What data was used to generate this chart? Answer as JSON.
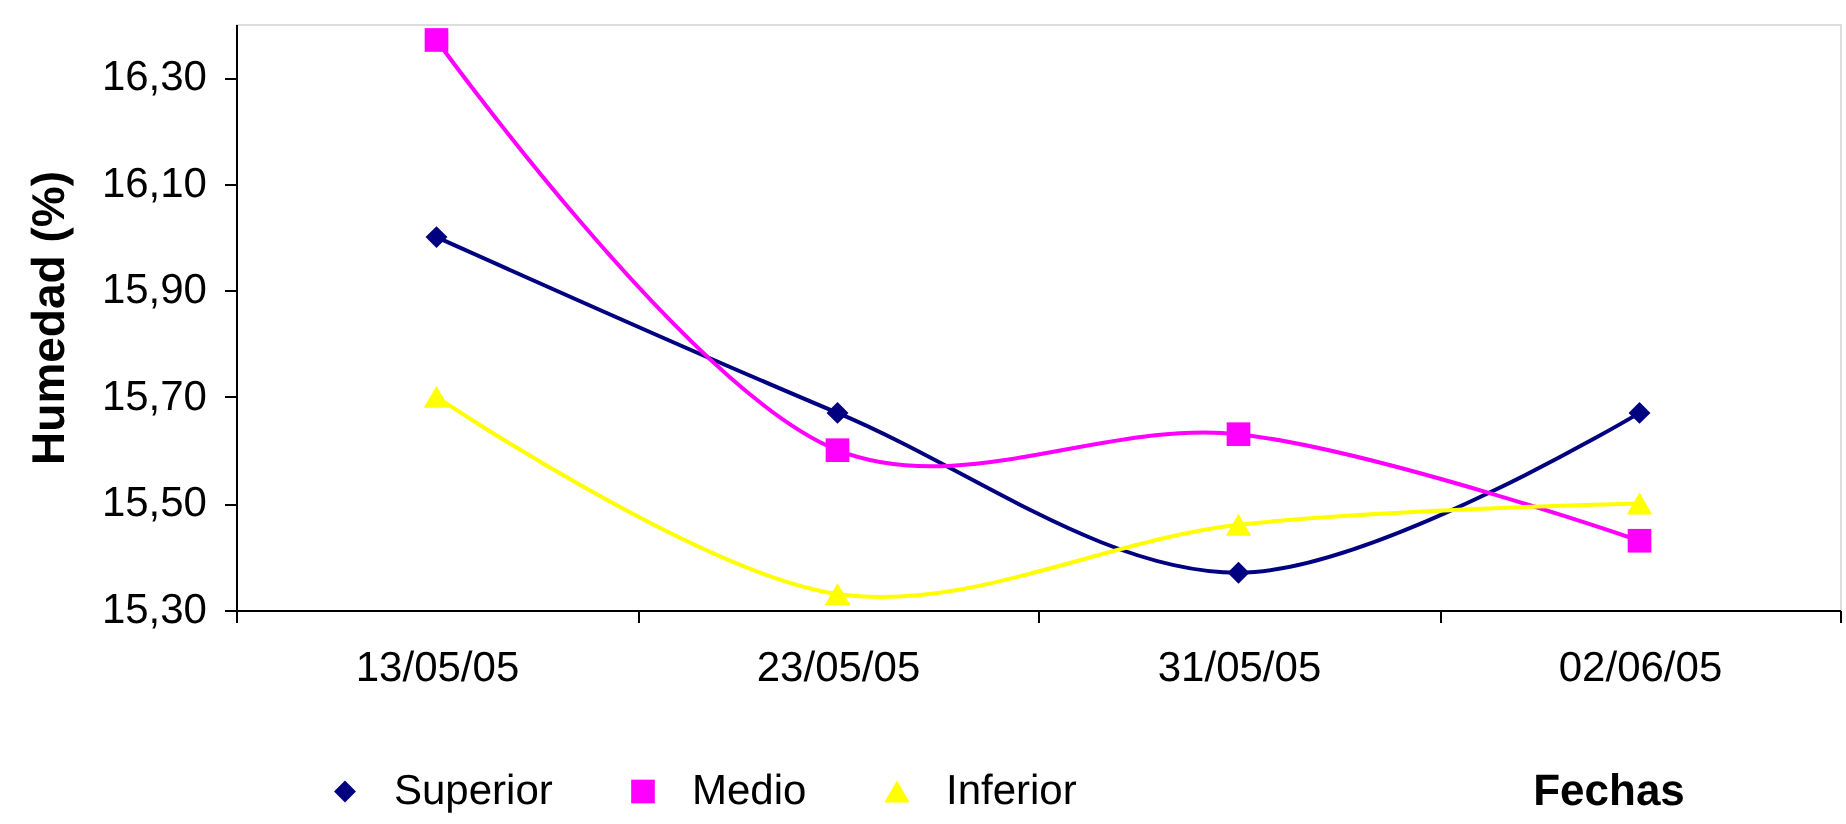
{
  "chart_data": {
    "type": "line",
    "xlabel": "Fechas",
    "ylabel": "Humedad (%)",
    "categories": [
      "13/05/05",
      "23/05/05",
      "31/05/05",
      "02/06/05"
    ],
    "series": [
      {
        "name": "Superior",
        "color": "#000080",
        "marker": "diamond",
        "values": [
          16.0,
          15.67,
          15.37,
          15.67
        ]
      },
      {
        "name": "Medio",
        "color": "#ff00ff",
        "marker": "square",
        "values": [
          16.37,
          15.6,
          15.63,
          15.43
        ]
      },
      {
        "name": "Inferior",
        "color": "#ffff00",
        "marker": "triangle",
        "values": [
          15.7,
          15.33,
          15.46,
          15.5
        ]
      }
    ],
    "ylim": [
      15.3,
      16.4
    ],
    "yticks": [
      {
        "value": 15.3,
        "label": "15,30"
      },
      {
        "value": 15.5,
        "label": "15,50"
      },
      {
        "value": 15.7,
        "label": "15,70"
      },
      {
        "value": 15.9,
        "label": "15,90"
      },
      {
        "value": 16.1,
        "label": "16,10"
      },
      {
        "value": 16.3,
        "label": "16,30"
      }
    ],
    "grid": false,
    "legend": "bottom left",
    "line_style": "solid"
  }
}
